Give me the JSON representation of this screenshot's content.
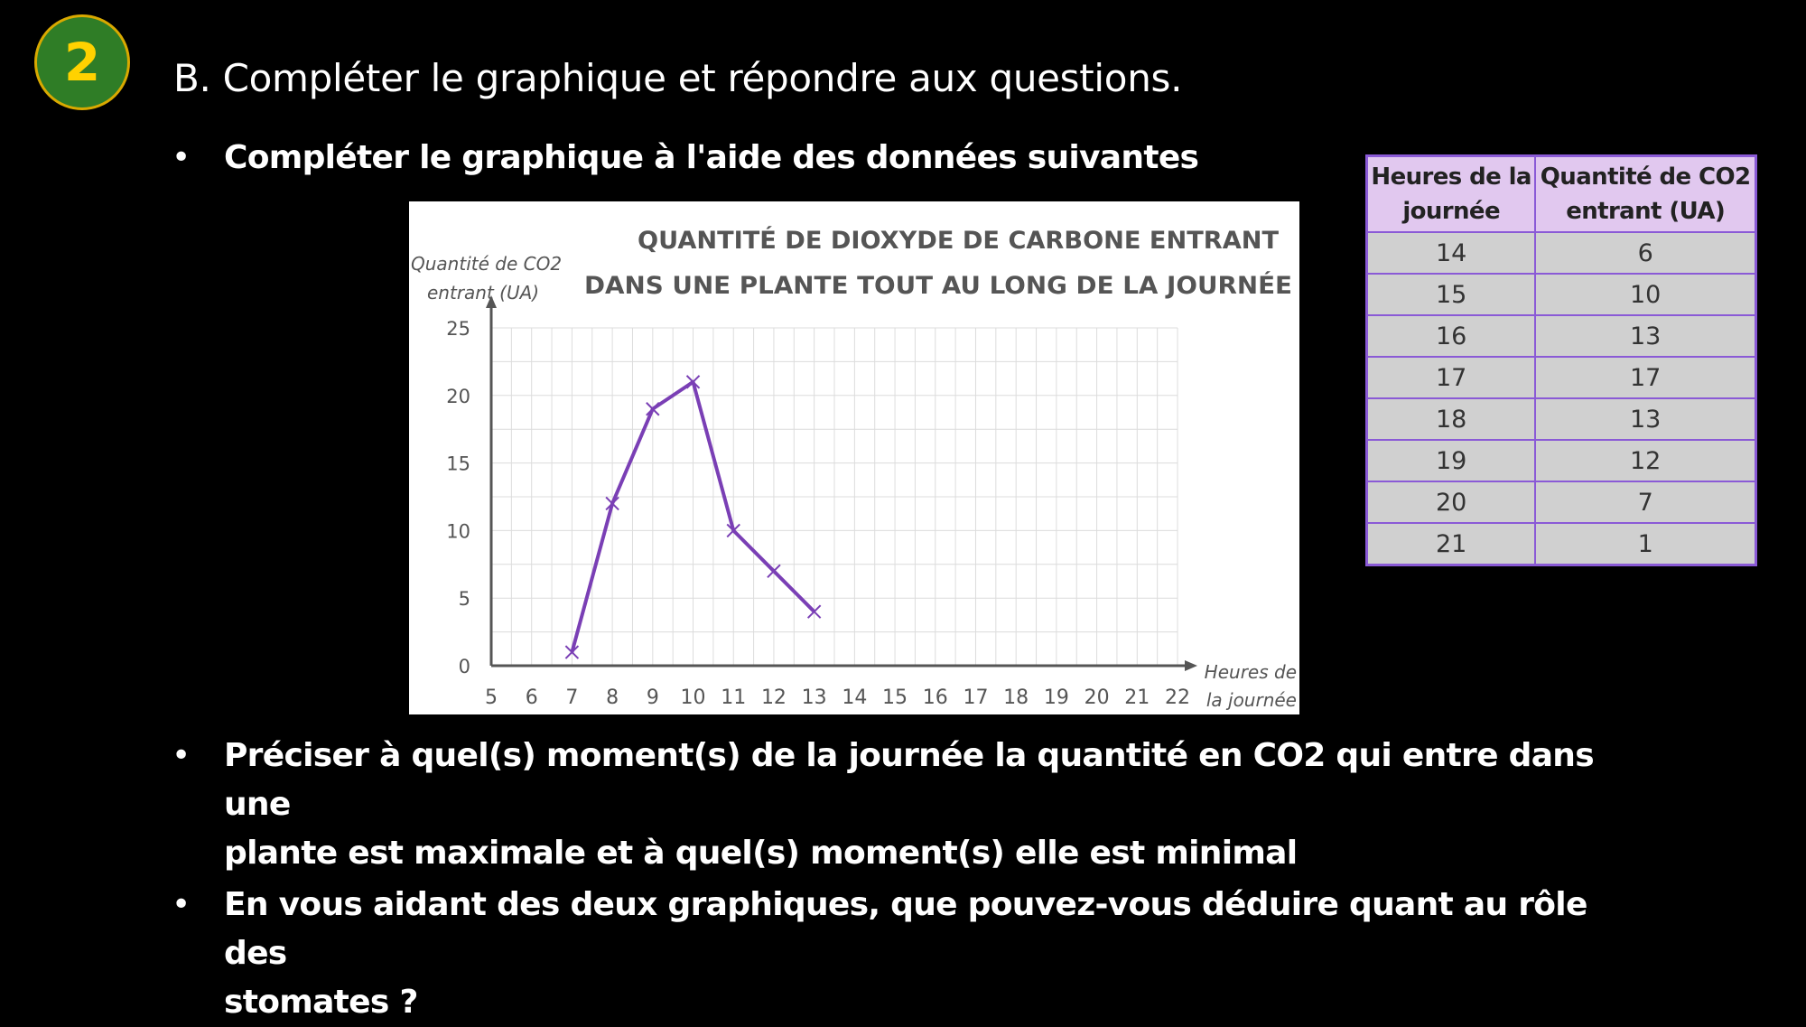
{
  "badge": {
    "number": "2",
    "fill_color": "#2f7d26",
    "border_color": "#d9a900",
    "text_color": "#ffd200"
  },
  "heading": "B. Compléter le graphique et répondre aux questions.",
  "bullets": [
    {
      "symbol": "•",
      "text": "Compléter le graphique à l'aide des données suivantes"
    },
    {
      "symbol": "•",
      "line1": "Préciser à quel(s) moment(s) de la journée la quantité en CO2 qui entre dans une",
      "line2": "plante est maximale et à quel(s) moment(s) elle est minimal"
    },
    {
      "symbol": "•",
      "line1": "En vous aidant des deux graphiques, que pouvez-vous déduire quant au rôle des",
      "line2": "stomates ?"
    }
  ],
  "table": {
    "headers": [
      [
        "Heures de la",
        "journée"
      ],
      [
        "Quantité de CO2",
        "entrant (UA)"
      ]
    ],
    "rows": [
      [
        "14",
        "6"
      ],
      [
        "15",
        "10"
      ],
      [
        "16",
        "13"
      ],
      [
        "17",
        "17"
      ],
      [
        "18",
        "13"
      ],
      [
        "19",
        "12"
      ],
      [
        "20",
        "7"
      ],
      [
        "21",
        "1"
      ]
    ]
  },
  "chart_data": {
    "type": "line",
    "title_lines": [
      "QUANTITÉ DE DIOXYDE DE CARBONE ENTRANT",
      "DANS UNE PLANTE TOUT AU LONG DE LA JOURNÉE"
    ],
    "ylabel_lines": [
      "Quantité de CO2",
      "entrant (UA)"
    ],
    "xlabel_lines": [
      "Heures de",
      "la journée"
    ],
    "x_ticks": [
      "5",
      "6",
      "7",
      "8",
      "9",
      "10",
      "11",
      "12",
      "13",
      "14",
      "15",
      "16",
      "17",
      "18",
      "19",
      "20",
      "21",
      "22"
    ],
    "y_ticks": [
      "0",
      "5",
      "10",
      "15",
      "20",
      "25"
    ],
    "xlim": [
      5,
      22
    ],
    "ylim": [
      0,
      25
    ],
    "grid": true,
    "line_color": "#7a3fb5",
    "series": [
      {
        "x": [
          7,
          8,
          9,
          10,
          11,
          12,
          13
        ],
        "y": [
          1,
          12,
          19,
          21,
          10,
          7,
          4
        ]
      }
    ]
  }
}
